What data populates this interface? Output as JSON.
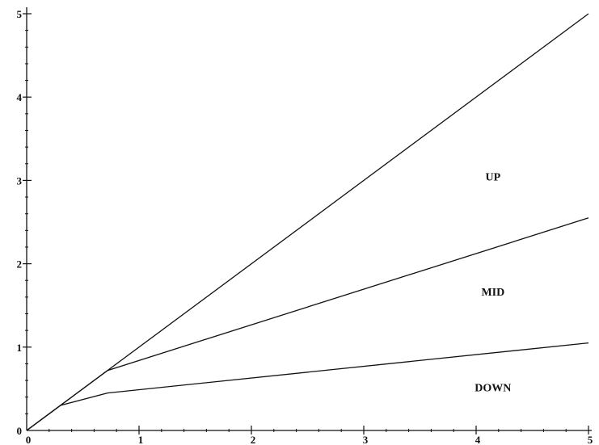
{
  "chart_data": {
    "type": "line",
    "title": "",
    "xlabel": "",
    "ylabel": "",
    "xlim": [
      0,
      5
    ],
    "ylim": [
      0,
      5
    ],
    "grid": false,
    "legend": "none",
    "x_ticks": [
      "0",
      "1",
      "2",
      "3",
      "4",
      "5"
    ],
    "y_ticks": [
      "0",
      "1",
      "2",
      "3",
      "4",
      "5"
    ],
    "series": [
      {
        "x": [
          0,
          5
        ],
        "y": [
          0,
          5
        ]
      },
      {
        "x": [
          0,
          0.72,
          5
        ],
        "y": [
          0,
          0.72,
          2.55
        ]
      },
      {
        "x": [
          0,
          0.3,
          0.72,
          5
        ],
        "y": [
          0,
          0.3,
          0.45,
          1.05
        ]
      }
    ],
    "annotations": [
      {
        "text": "UP",
        "x": 4.15,
        "y": 3.0
      },
      {
        "text": "MID",
        "x": 4.15,
        "y": 1.62
      },
      {
        "text": "DOWN",
        "x": 4.15,
        "y": 0.47
      }
    ],
    "line_color": "#111111",
    "background": "#ffffff"
  }
}
